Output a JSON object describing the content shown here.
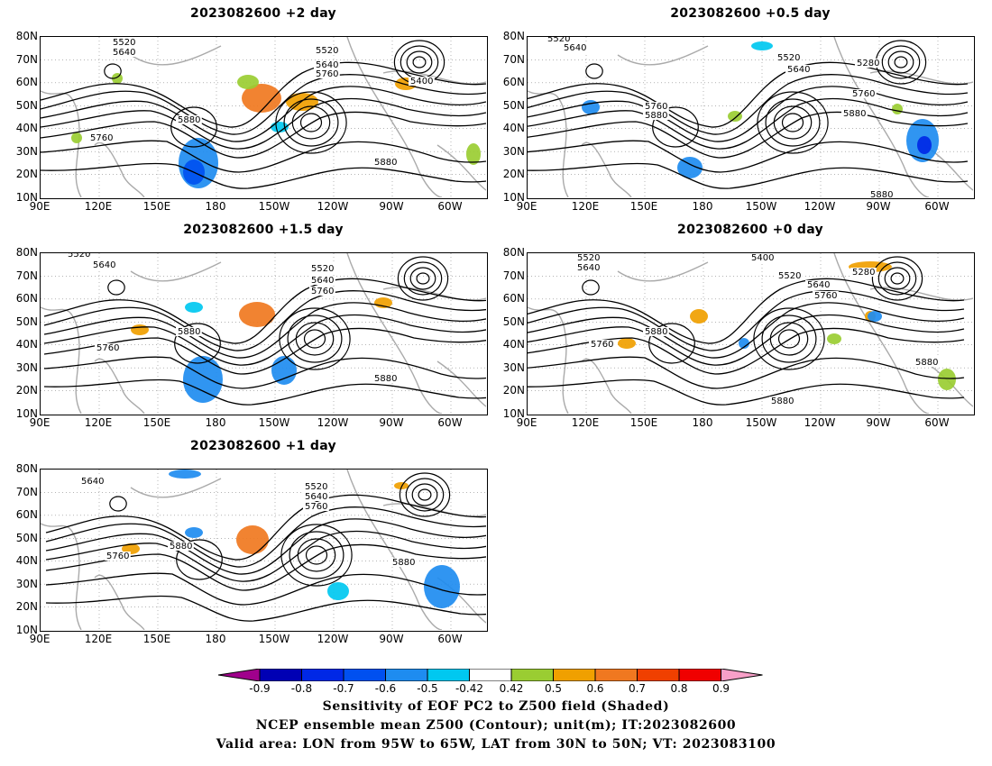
{
  "panels": [
    {
      "id": "p1",
      "title": "2023082600 +2 day"
    },
    {
      "id": "p2",
      "title": "2023082600 +0.5 day"
    },
    {
      "id": "p3",
      "title": "2023082600 +1.5 day"
    },
    {
      "id": "p4",
      "title": "2023082600 +0 day"
    },
    {
      "id": "p5",
      "title": "2023082600 +1 day"
    }
  ],
  "lat_labels": [
    "80N",
    "70N",
    "60N",
    "50N",
    "40N",
    "30N",
    "20N",
    "10N"
  ],
  "lon_labels": [
    "90E",
    "120E",
    "150E",
    "180",
    "150W",
    "120W",
    "90W",
    "60W"
  ],
  "contour_labels": {
    "p1": [
      "5520",
      "5640",
      "5520",
      "5640",
      "5760",
      "5400",
      "5880",
      "5760",
      "5880"
    ],
    "p2": [
      "5520",
      "5640",
      "5520",
      "5640",
      "5280",
      "5760",
      "5880",
      "5760",
      "5880",
      "5880"
    ],
    "p3": [
      "5520",
      "5640",
      "5520",
      "5640",
      "5760",
      "5880",
      "5760",
      "5880"
    ],
    "p4": [
      "5520",
      "5640",
      "5400",
      "5520",
      "5640",
      "5760",
      "5280",
      "5880",
      "5760",
      "5880",
      "5880"
    ],
    "p5": [
      "5640",
      "5520",
      "5640",
      "5760",
      "5880",
      "5760",
      "5880"
    ]
  },
  "colorbar": {
    "labels": [
      "-0.9",
      "-0.8",
      "-0.7",
      "-0.6",
      "-0.5",
      "-0.42",
      "0.42",
      "0.5",
      "0.6",
      "0.7",
      "0.8",
      "0.9"
    ],
    "colors": [
      "#a0008c",
      "#0000b4",
      "#0028e6",
      "#0050f0",
      "#1e8cf0",
      "#00c8f0",
      "#ffffff",
      "#9acd32",
      "#f0a000",
      "#f07820",
      "#f04000",
      "#f00000",
      "#f8a0c8"
    ]
  },
  "captions": [
    "Sensitivity of EOF PC2 to Z500 field (Shaded)",
    "NCEP ensemble mean Z500 (Contour); unit(m); IT:2023082600",
    "Valid area: LON from 95W to 65W, LAT from 30N to 50N; VT: 2023083100"
  ]
}
